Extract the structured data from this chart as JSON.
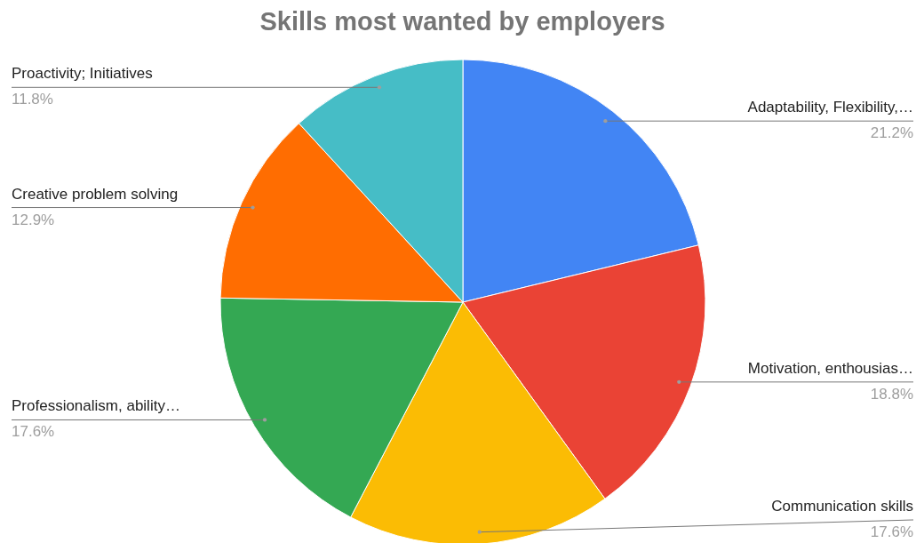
{
  "chart_data": {
    "type": "pie",
    "title": "Skills most wanted by employers",
    "categories": [
      "Adaptability, Flexibility,…",
      "Motivation, enthousias…",
      "Communication skills",
      "Professionalism, ability…",
      "Creative problem solving",
      "Proactivity; Initiatives"
    ],
    "values": [
      21.2,
      18.8,
      17.6,
      17.6,
      12.9,
      11.8
    ],
    "value_labels": [
      "21.2%",
      "18.8%",
      "17.6%",
      "17.6%",
      "12.9%",
      "11.8%"
    ],
    "colors": [
      "#4285f4",
      "#ea4335",
      "#fbbc04",
      "#34a853",
      "#ff6d01",
      "#46bdc6"
    ]
  }
}
